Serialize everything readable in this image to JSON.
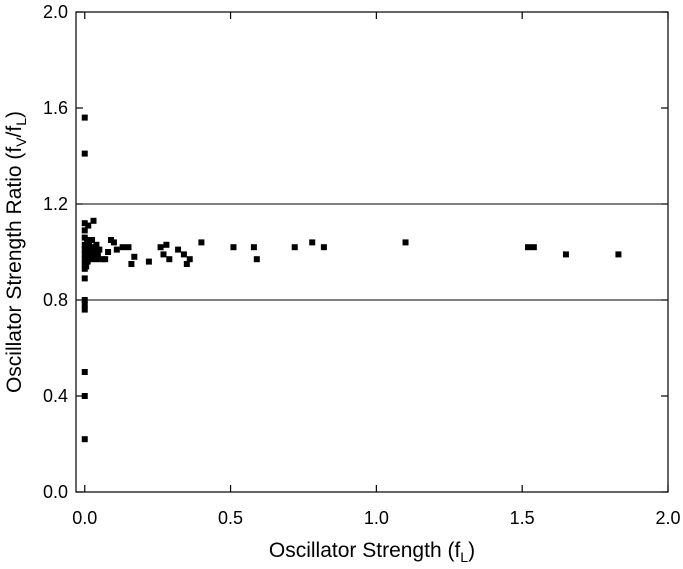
{
  "chart_data": {
    "type": "scatter",
    "xlabel": {
      "main": "Oscillator Strength (f",
      "sub": "L",
      "close": ")"
    },
    "ylabel": {
      "main": "Oscillator Strength Ratio (f",
      "sub1": "V",
      "mid": "/f",
      "sub2": "L",
      "close": ")"
    },
    "xlim": [
      -0.03,
      2.0
    ],
    "ylim": [
      0.0,
      2.0
    ],
    "x_ticks": [
      0.0,
      0.5,
      1.0,
      1.5,
      2.0
    ],
    "x_tick_labels": [
      "0.0",
      "0.5",
      "1.0",
      "1.5",
      "2.0"
    ],
    "y_ticks": [
      0.0,
      0.4,
      0.8,
      1.2,
      1.6,
      2.0
    ],
    "y_tick_labels": [
      "0.0",
      "0.4",
      "0.8",
      "1.2",
      "1.6",
      "2.0"
    ],
    "reference_lines_y": [
      0.8,
      1.2
    ],
    "grid": false,
    "marker_color": "#000000",
    "points": [
      {
        "x": 0.0,
        "y": 1.56
      },
      {
        "x": 0.0,
        "y": 1.41
      },
      {
        "x": 0.0,
        "y": 0.5
      },
      {
        "x": 0.0,
        "y": 0.4
      },
      {
        "x": 0.0,
        "y": 0.22
      },
      {
        "x": 0.0,
        "y": 0.8
      },
      {
        "x": 0.0,
        "y": 0.78
      },
      {
        "x": 0.0,
        "y": 0.76
      },
      {
        "x": 0.0,
        "y": 0.89
      },
      {
        "x": 0.0,
        "y": 0.93
      },
      {
        "x": 0.0,
        "y": 0.95
      },
      {
        "x": 0.0,
        "y": 0.97
      },
      {
        "x": 0.0,
        "y": 0.99
      },
      {
        "x": 0.0,
        "y": 1.01
      },
      {
        "x": 0.0,
        "y": 1.03
      },
      {
        "x": 0.0,
        "y": 1.06
      },
      {
        "x": 0.0,
        "y": 1.09
      },
      {
        "x": 0.0,
        "y": 1.12
      },
      {
        "x": 0.005,
        "y": 0.94
      },
      {
        "x": 0.005,
        "y": 0.98
      },
      {
        "x": 0.005,
        "y": 1.02
      },
      {
        "x": 0.008,
        "y": 1.05
      },
      {
        "x": 0.01,
        "y": 0.96
      },
      {
        "x": 0.01,
        "y": 1.0
      },
      {
        "x": 0.012,
        "y": 1.11
      },
      {
        "x": 0.015,
        "y": 0.98
      },
      {
        "x": 0.015,
        "y": 1.03
      },
      {
        "x": 0.02,
        "y": 0.97
      },
      {
        "x": 0.02,
        "y": 1.01
      },
      {
        "x": 0.025,
        "y": 1.05
      },
      {
        "x": 0.025,
        "y": 1.0
      },
      {
        "x": 0.03,
        "y": 0.98
      },
      {
        "x": 0.03,
        "y": 1.13
      },
      {
        "x": 0.03,
        "y": 1.02
      },
      {
        "x": 0.035,
        "y": 1.0
      },
      {
        "x": 0.04,
        "y": 0.97
      },
      {
        "x": 0.04,
        "y": 1.03
      },
      {
        "x": 0.045,
        "y": 0.99
      },
      {
        "x": 0.05,
        "y": 1.01
      },
      {
        "x": 0.06,
        "y": 0.97
      },
      {
        "x": 0.07,
        "y": 0.97
      },
      {
        "x": 0.08,
        "y": 1.0
      },
      {
        "x": 0.09,
        "y": 1.05
      },
      {
        "x": 0.1,
        "y": 1.04
      },
      {
        "x": 0.11,
        "y": 1.01
      },
      {
        "x": 0.13,
        "y": 1.02
      },
      {
        "x": 0.15,
        "y": 1.02
      },
      {
        "x": 0.16,
        "y": 0.95
      },
      {
        "x": 0.17,
        "y": 0.98
      },
      {
        "x": 0.22,
        "y": 0.96
      },
      {
        "x": 0.26,
        "y": 1.02
      },
      {
        "x": 0.27,
        "y": 0.99
      },
      {
        "x": 0.28,
        "y": 1.03
      },
      {
        "x": 0.29,
        "y": 0.97
      },
      {
        "x": 0.32,
        "y": 1.01
      },
      {
        "x": 0.34,
        "y": 0.99
      },
      {
        "x": 0.35,
        "y": 0.95
      },
      {
        "x": 0.36,
        "y": 0.97
      },
      {
        "x": 0.4,
        "y": 1.04
      },
      {
        "x": 0.51,
        "y": 1.02
      },
      {
        "x": 0.58,
        "y": 1.02
      },
      {
        "x": 0.59,
        "y": 0.97
      },
      {
        "x": 0.72,
        "y": 1.02
      },
      {
        "x": 0.78,
        "y": 1.04
      },
      {
        "x": 0.82,
        "y": 1.02
      },
      {
        "x": 1.1,
        "y": 1.04
      },
      {
        "x": 1.52,
        "y": 1.02
      },
      {
        "x": 1.54,
        "y": 1.02
      },
      {
        "x": 1.65,
        "y": 0.99
      },
      {
        "x": 1.83,
        "y": 0.99
      }
    ]
  }
}
